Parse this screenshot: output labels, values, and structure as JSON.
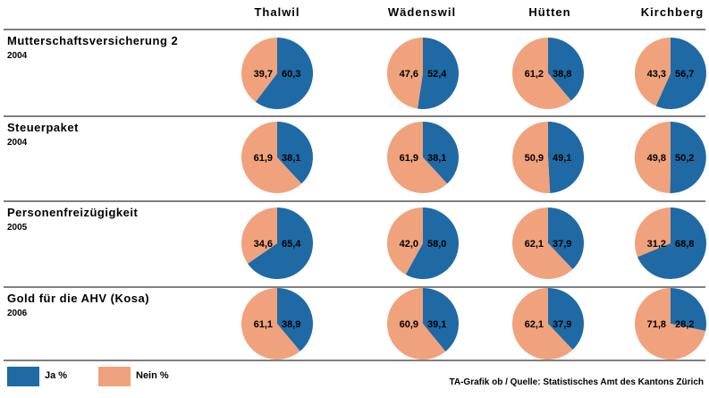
{
  "chart_data": {
    "type": "pie",
    "colors": {
      "ja": "#1f6aa5",
      "nein": "#f0a27c"
    },
    "columns": [
      "Thalwil",
      "Wädenswil",
      "Hütten",
      "Kirchberg"
    ],
    "rows": [
      {
        "title": "Mutterschaftsversicherung 2",
        "year": "2004",
        "pies": [
          {
            "ja": 60.3,
            "nein": 39.7,
            "ja_label": "60,3",
            "nein_label": "39,7"
          },
          {
            "ja": 52.4,
            "nein": 47.6,
            "ja_label": "52,4",
            "nein_label": "47,6"
          },
          {
            "ja": 38.8,
            "nein": 61.2,
            "ja_label": "38,8",
            "nein_label": "61,2"
          },
          {
            "ja": 56.7,
            "nein": 43.3,
            "ja_label": "56,7",
            "nein_label": "43,3"
          }
        ]
      },
      {
        "title": "Steuerpaket",
        "year": "2004",
        "pies": [
          {
            "ja": 38.1,
            "nein": 61.9,
            "ja_label": "38,1",
            "nein_label": "61,9"
          },
          {
            "ja": 38.1,
            "nein": 61.9,
            "ja_label": "38,1",
            "nein_label": "61,9"
          },
          {
            "ja": 49.1,
            "nein": 50.9,
            "ja_label": "49,1",
            "nein_label": "50,9"
          },
          {
            "ja": 50.2,
            "nein": 49.8,
            "ja_label": "50,2",
            "nein_label": "49,8"
          }
        ]
      },
      {
        "title": "Personenfreizügigkeit",
        "year": "2005",
        "pies": [
          {
            "ja": 65.4,
            "nein": 34.6,
            "ja_label": "65,4",
            "nein_label": "34,6"
          },
          {
            "ja": 58.0,
            "nein": 42.0,
            "ja_label": "58,0",
            "nein_label": "42,0"
          },
          {
            "ja": 37.9,
            "nein": 62.1,
            "ja_label": "37,9",
            "nein_label": "62,1"
          },
          {
            "ja": 68.8,
            "nein": 31.2,
            "ja_label": "68,8",
            "nein_label": "31,2"
          }
        ]
      },
      {
        "title": "Gold für die AHV (Kosa)",
        "year": "2006",
        "pies": [
          {
            "ja": 38.9,
            "nein": 61.1,
            "ja_label": "38,9",
            "nein_label": "61,1"
          },
          {
            "ja": 39.1,
            "nein": 60.9,
            "ja_label": "39,1",
            "nein_label": "60,9"
          },
          {
            "ja": 37.9,
            "nein": 62.1,
            "ja_label": "37,9",
            "nein_label": "62,1"
          },
          {
            "ja": 28.2,
            "nein": 71.8,
            "ja_label": "28,2",
            "nein_label": "71,8"
          }
        ]
      }
    ],
    "legend": {
      "ja_label": "Ja %",
      "nein_label": "Nein %"
    },
    "source": "TA-Grafik ob / Quelle: Statistisches Amt des Kantons Zürich"
  }
}
